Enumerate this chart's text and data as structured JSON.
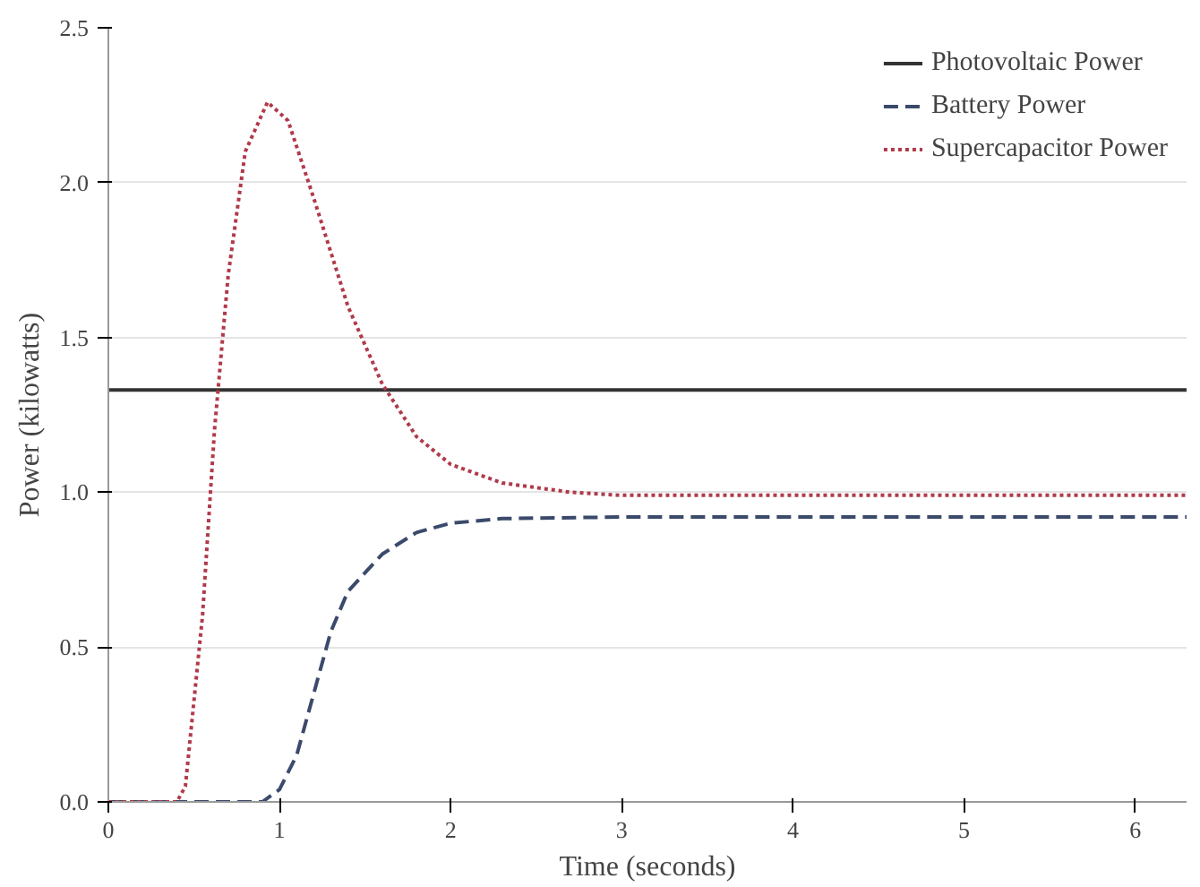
{
  "chart_data": {
    "type": "line",
    "xlabel": "Time (seconds)",
    "ylabel": "Power (kilowatts)",
    "xlim": [
      0,
      6.3
    ],
    "ylim": [
      0,
      2.5
    ],
    "xticks": [
      0,
      1,
      2,
      3,
      4,
      5,
      6
    ],
    "yticks": [
      {
        "value": 0,
        "label": "0.0"
      },
      0.5,
      {
        "value": 1,
        "label": "1.0"
      },
      1.5,
      {
        "value": 2,
        "label": "2.0"
      },
      2.5
    ],
    "grid": "y",
    "legend": "top right",
    "series": [
      {
        "name": "Photovoltaic Power",
        "color": "#333333",
        "line_style": "solid",
        "x": [
          0,
          6.3
        ],
        "values": [
          1.33,
          1.33
        ]
      },
      {
        "name": "Battery Power",
        "color": "#3b4a6b",
        "line_style": "dashed",
        "x": [
          0,
          0.9,
          1.0,
          1.1,
          1.2,
          1.3,
          1.4,
          1.6,
          1.8,
          2.0,
          2.3,
          3.0,
          4.0,
          5.0,
          6.3
        ],
        "values": [
          0,
          0,
          0.04,
          0.15,
          0.35,
          0.55,
          0.68,
          0.8,
          0.87,
          0.9,
          0.915,
          0.92,
          0.92,
          0.92,
          0.92
        ]
      },
      {
        "name": "Supercapacitor Power",
        "color": "#b03a4a",
        "line_style": "dotted",
        "x": [
          0,
          0.4,
          0.45,
          0.55,
          0.62,
          0.7,
          0.8,
          0.93,
          1.05,
          1.2,
          1.4,
          1.6,
          1.8,
          2.0,
          2.3,
          2.7,
          3.0,
          4.0,
          5.0,
          6.3
        ],
        "values": [
          0,
          0,
          0.05,
          0.6,
          1.2,
          1.7,
          2.1,
          2.26,
          2.2,
          1.95,
          1.6,
          1.35,
          1.18,
          1.09,
          1.03,
          1.0,
          0.99,
          0.99,
          0.99,
          0.99
        ]
      }
    ]
  }
}
